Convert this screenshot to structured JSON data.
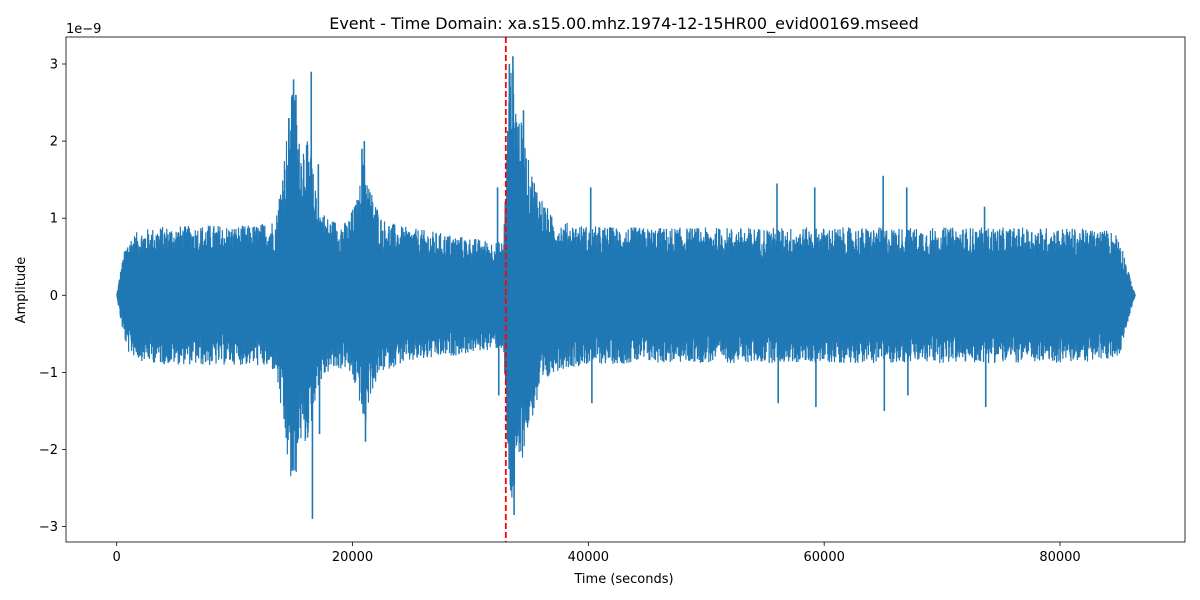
{
  "chart_data": {
    "type": "line",
    "title": "Event - Time Domain: xa.s15.00.mhz.1974-12-15HR00_evid00169.mseed",
    "xlabel": "Time (seconds)",
    "ylabel": "Amplitude",
    "y_scale_label": "1e−9",
    "xlim": [
      -4300,
      90600
    ],
    "ylim": [
      -3.2,
      3.35
    ],
    "y_scale_factor": 1e-09,
    "x_ticks": [
      0,
      20000,
      40000,
      60000,
      80000
    ],
    "x_tick_labels": [
      "0",
      "20000",
      "40000",
      "60000",
      "80000"
    ],
    "y_ticks": [
      -3,
      -2,
      -1,
      0,
      1,
      2,
      3
    ],
    "y_tick_labels": [
      "−3",
      "−2",
      "−1",
      "0",
      "1",
      "2",
      "3"
    ],
    "grid": false,
    "series": [
      {
        "color": "#1f77b4",
        "envelope": {
          "x": [
            0,
            300,
            600,
            1000,
            2000,
            4000,
            6000,
            8000,
            10000,
            12000,
            13500,
            14500,
            15000,
            15500,
            16000,
            16500,
            17000,
            18000,
            19500,
            20500,
            21000,
            21500,
            22500,
            24000,
            26000,
            28000,
            30000,
            32000,
            32800,
            33200,
            33500,
            34000,
            35000,
            36000,
            37000,
            38000,
            40000,
            45000,
            50000,
            55000,
            60000,
            65000,
            70000,
            75000,
            80000,
            84000,
            85000,
            85500,
            86000,
            86400
          ],
          "upper": [
            0.0,
            0.3,
            0.55,
            0.75,
            0.85,
            0.9,
            0.9,
            0.92,
            0.9,
            0.92,
            1.0,
            2.2,
            2.8,
            2.0,
            2.1,
            1.8,
            1.2,
            1.0,
            0.95,
            1.3,
            1.9,
            1.4,
            1.0,
            0.9,
            0.85,
            0.8,
            0.75,
            0.7,
            0.7,
            2.5,
            3.1,
            2.5,
            1.7,
            1.3,
            1.0,
            0.95,
            0.9,
            0.88,
            0.88,
            0.88,
            0.88,
            0.88,
            0.88,
            0.88,
            0.88,
            0.85,
            0.8,
            0.5,
            0.2,
            0.0
          ],
          "lower": [
            0.0,
            -0.3,
            -0.55,
            -0.75,
            -0.85,
            -0.9,
            -0.9,
            -0.92,
            -0.9,
            -0.92,
            -1.0,
            -2.2,
            -2.7,
            -1.9,
            -2.0,
            -1.7,
            -1.2,
            -1.0,
            -0.95,
            -1.3,
            -1.8,
            -1.3,
            -1.0,
            -0.9,
            -0.85,
            -0.8,
            -0.75,
            -0.7,
            -0.7,
            -2.4,
            -2.8,
            -2.4,
            -1.7,
            -1.3,
            -1.0,
            -0.95,
            -0.9,
            -0.88,
            -0.88,
            -0.88,
            -0.88,
            -0.88,
            -0.88,
            -0.88,
            -0.88,
            -0.85,
            -0.8,
            -0.5,
            -0.2,
            0.0
          ]
        },
        "spikes": [
          {
            "x": 14600,
            "value": 2.3
          },
          {
            "x": 14900,
            "value": 2.6
          },
          {
            "x": 15000,
            "value": 2.8
          },
          {
            "x": 15200,
            "value": 2.6
          },
          {
            "x": 16500,
            "value": 2.9
          },
          {
            "x": 16600,
            "value": -2.9
          },
          {
            "x": 17100,
            "value": 1.7
          },
          {
            "x": 17200,
            "value": -1.8
          },
          {
            "x": 20800,
            "value": 1.9
          },
          {
            "x": 21000,
            "value": 2.0
          },
          {
            "x": 21100,
            "value": -1.9
          },
          {
            "x": 32300,
            "value": 1.4
          },
          {
            "x": 32400,
            "value": -1.3
          },
          {
            "x": 33300,
            "value": 3.0
          },
          {
            "x": 33600,
            "value": 3.1
          },
          {
            "x": 33700,
            "value": -2.85
          },
          {
            "x": 34500,
            "value": 2.4
          },
          {
            "x": 40200,
            "value": 1.4
          },
          {
            "x": 40300,
            "value": -1.4
          },
          {
            "x": 56000,
            "value": 1.45
          },
          {
            "x": 56100,
            "value": -1.4
          },
          {
            "x": 59200,
            "value": 1.4
          },
          {
            "x": 59300,
            "value": -1.45
          },
          {
            "x": 65000,
            "value": 1.55
          },
          {
            "x": 65100,
            "value": -1.5
          },
          {
            "x": 67000,
            "value": 1.4
          },
          {
            "x": 67100,
            "value": -1.3
          },
          {
            "x": 73600,
            "value": 1.15
          },
          {
            "x": 73700,
            "value": -1.45
          }
        ]
      }
    ],
    "vertical_line": {
      "x": 33000,
      "color": "#ff0000",
      "style": "dashed"
    }
  }
}
